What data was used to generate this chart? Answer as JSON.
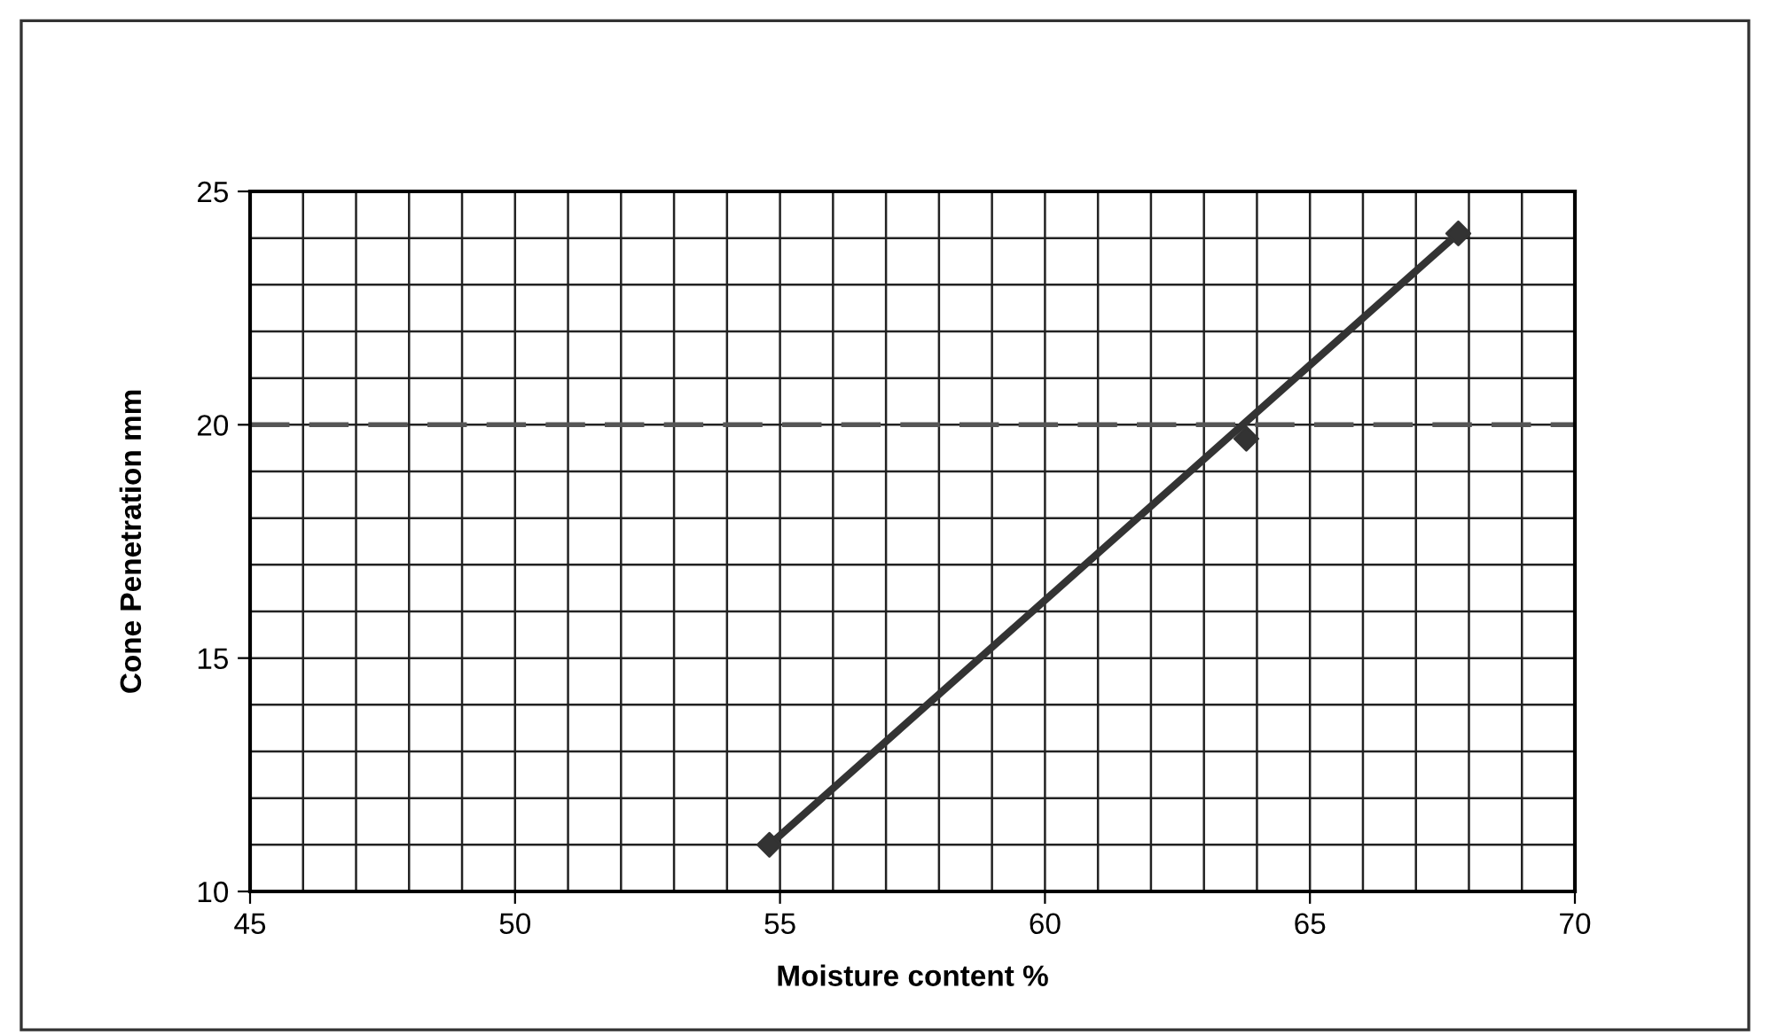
{
  "chart_data": {
    "type": "scatter",
    "xlabel": "Moisture content %",
    "ylabel": "Cone Penetration mm",
    "series": [
      {
        "color": "#333333",
        "marker": "diamond",
        "x": [
          54.8,
          63.8,
          67.8
        ],
        "values": [
          11.0,
          19.7,
          24.1
        ]
      },
      {
        "type": "line",
        "color": "#333333",
        "marker": "none",
        "line_style": "solid",
        "x": [
          54.8,
          67.8
        ],
        "values": [
          11.0,
          24.1
        ]
      }
    ],
    "xlim": [
      45,
      70
    ],
    "ylim": [
      10,
      25
    ],
    "xticks": [
      45,
      {
        "value": 46,
        "label": null
      },
      {
        "value": 47,
        "label": null
      },
      {
        "value": 48,
        "label": null
      },
      {
        "value": 49,
        "label": null
      },
      50,
      {
        "value": 51,
        "label": null
      },
      {
        "value": 52,
        "label": null
      },
      {
        "value": 53,
        "label": null
      },
      {
        "value": 54,
        "label": null
      },
      55,
      {
        "value": 56,
        "label": null
      },
      {
        "value": 57,
        "label": null
      },
      {
        "value": 58,
        "label": null
      },
      {
        "value": 59,
        "label": null
      },
      60,
      {
        "value": 61,
        "label": null
      },
      {
        "value": 62,
        "label": null
      },
      {
        "value": 63,
        "label": null
      },
      {
        "value": 64,
        "label": null
      },
      65,
      {
        "value": 66,
        "label": null
      },
      {
        "value": 67,
        "label": null
      },
      {
        "value": 68,
        "label": null
      },
      {
        "value": 69,
        "label": null
      },
      70
    ],
    "yticks": [
      10,
      {
        "value": 11,
        "label": null
      },
      {
        "value": 12,
        "label": null
      },
      {
        "value": 13,
        "label": null
      },
      {
        "value": 14,
        "label": null
      },
      15,
      {
        "value": 16,
        "label": null
      },
      {
        "value": 17,
        "label": null
      },
      {
        "value": 18,
        "label": null
      },
      {
        "value": 19,
        "label": null
      },
      20,
      {
        "value": 21,
        "label": null
      },
      {
        "value": 22,
        "label": null
      },
      {
        "value": 23,
        "label": null
      },
      {
        "value": 24,
        "label": null
      },
      25
    ],
    "grid": true,
    "ref_lines": [
      {
        "axis": "y",
        "value": 20,
        "color": "#555555",
        "line_style": "dashed"
      }
    ]
  }
}
